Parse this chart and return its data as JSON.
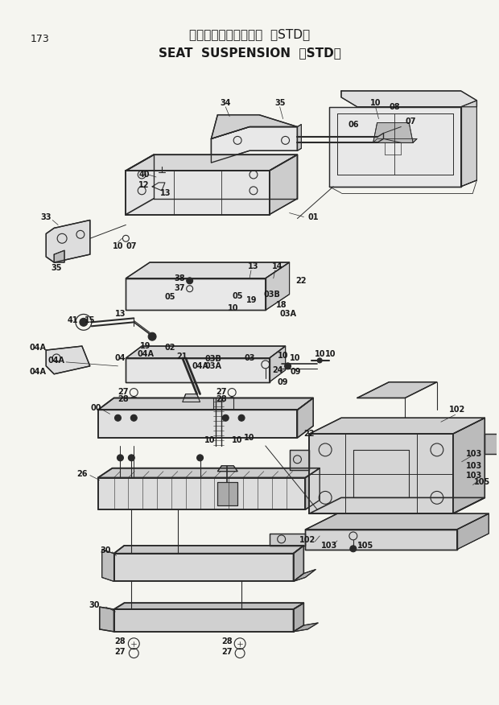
{
  "page_number": "173",
  "title_japanese": "シートサスペンション 〈STD〉",
  "title_english": "SEAT  SUSPENSION  〈STD〉",
  "background_color": "#f5f5f0",
  "line_color": "#2a2a2a",
  "text_color": "#1a1a1a",
  "fig_width": 6.2,
  "fig_height": 8.76,
  "dpi": 100
}
